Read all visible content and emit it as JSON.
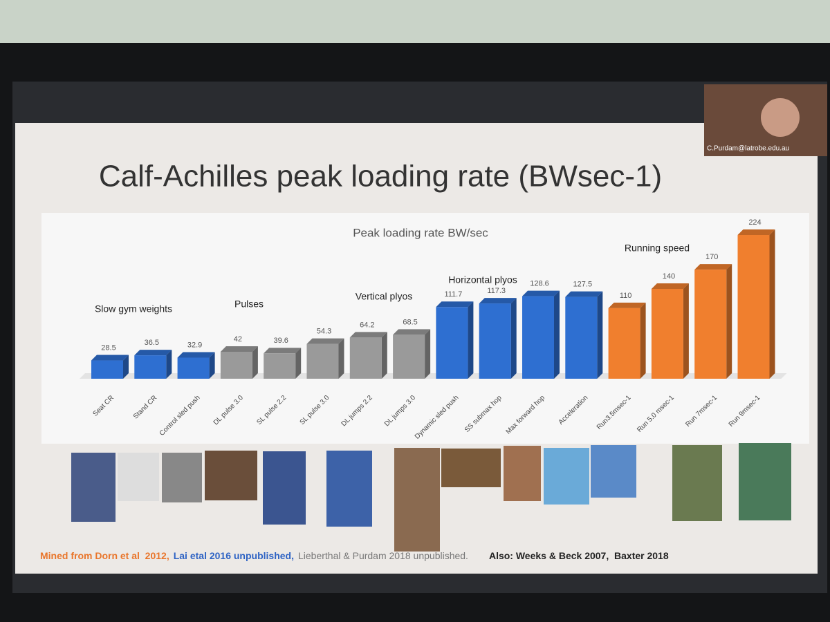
{
  "slide": {
    "title": "Calf-Achilles peak loading rate (BWsec-1)",
    "footer": [
      "Mined from Dorn et al  2012,",
      "Lai etal 2016 unpublished,",
      "Lieberthal & Purdam 2018 unpublished.",
      "Also: Weeks & Beck 2007,  Baxter 2018"
    ]
  },
  "webcam": {
    "label": "C.Purdam@latrobe.edu.au"
  },
  "chart_data": {
    "type": "bar",
    "title": "Peak loading rate BW/sec",
    "categories": [
      "Seat CR",
      "Stand CR",
      "Control sled push",
      "DL pulse 3.0",
      "SL pulse 2.2",
      "SL pulse 3.0",
      "DL jumps 2.2",
      "DL jumps 3.0",
      "Dynamic sled push",
      "SS submax hop",
      "Max forward hop",
      "Acceleration",
      "Run3.5msec-1",
      "Run 5.0 msec-1",
      "Run 7msec-1",
      "Run 9msec-1"
    ],
    "values": [
      28.5,
      36.5,
      32.9,
      42,
      39.6,
      54.3,
      64.2,
      68.5,
      111.7,
      117.3,
      128.6,
      127.5,
      110,
      140,
      170,
      224
    ],
    "colors": [
      "#2e6fd1",
      "#2e6fd1",
      "#2e6fd1",
      "#9a9a9a",
      "#9a9a9a",
      "#9a9a9a",
      "#9a9a9a",
      "#9a9a9a",
      "#2e6fd1",
      "#2e6fd1",
      "#2e6fd1",
      "#2e6fd1",
      "#f07f2e",
      "#f07f2e",
      "#f07f2e",
      "#f07f2e"
    ],
    "annotations": [
      "Slow gym weights",
      "Pulses",
      "Vertical plyos",
      "Horizontal plyos",
      "Running  speed"
    ]
  }
}
